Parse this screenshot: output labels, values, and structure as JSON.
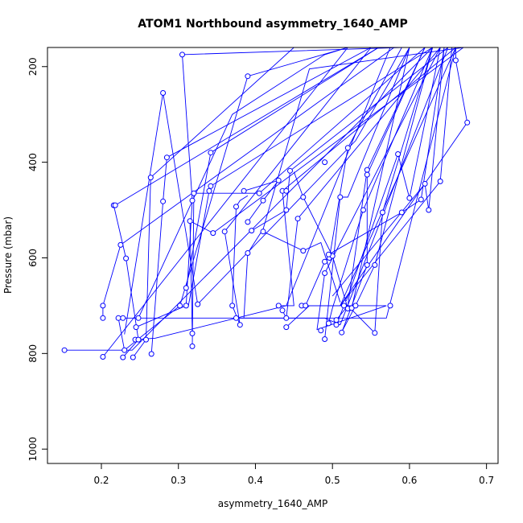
{
  "chart_data": {
    "type": "line",
    "title": "ATOM1 Northbound asymmetry_1640_AMP",
    "xlabel": "asymmetry_1640_AMP",
    "ylabel": "Pressure (mbar)",
    "xlim": [
      0.13,
      0.715
    ],
    "ylim": [
      1030,
      160
    ],
    "y_reversed": true,
    "x_ticks": [
      0.2,
      0.3,
      0.4,
      0.5,
      0.6,
      0.7
    ],
    "x_tick_labels": [
      "0.2",
      "0.3",
      "0.4",
      "0.5",
      "0.6",
      "0.7"
    ],
    "y_ticks": [
      200,
      400,
      600,
      800,
      1000
    ],
    "y_tick_labels": [
      "200",
      "400",
      "600",
      "800",
      "1000"
    ],
    "grid": false,
    "color": "#0000ff",
    "series": [
      {
        "x": [
          0.152,
          0.24,
          0.63
        ],
        "y": [
          793,
          793,
          160
        ]
      },
      {
        "x": [
          0.202,
          0.52,
          0.62
        ],
        "y": [
          807,
          160,
          160
        ]
      },
      {
        "x": [
          0.228,
          0.248,
          0.232,
          0.216,
          0.218,
          0.56
        ],
        "y": [
          808,
          771,
          601,
          490,
          490,
          160
        ]
      },
      {
        "x": [
          0.241,
          0.258,
          0.264,
          0.45,
          0.56
        ],
        "y": [
          808,
          771,
          432,
          160,
          160
        ]
      },
      {
        "x": [
          0.244,
          0.27,
          0.44,
          0.575
        ],
        "y": [
          771,
          768,
          700,
          160
        ]
      },
      {
        "x": [
          0.265,
          0.28,
          0.285,
          0.55,
          0.6
        ],
        "y": [
          801,
          482,
          390,
          160,
          160
        ]
      },
      {
        "x": [
          0.202,
          0.202,
          0.225,
          0.58
        ],
        "y": [
          726,
          700,
          573,
          160
        ]
      },
      {
        "x": [
          0.222,
          0.23,
          0.302,
          0.39,
          0.52
        ],
        "y": [
          726,
          793,
          700,
          220,
          160
        ]
      },
      {
        "x": [
          0.228,
          0.57,
          0.66
        ],
        "y": [
          726,
          726,
          160
        ]
      },
      {
        "x": [
          0.245,
          0.31,
          0.318,
          0.305,
          0.59
        ],
        "y": [
          745,
          700,
          480,
          175,
          160
        ]
      },
      {
        "x": [
          0.248,
          0.37,
          0.49,
          0.52
        ],
        "y": [
          726,
          300,
          175,
          160
        ]
      },
      {
        "x": [
          0.23,
          0.28,
          0.325,
          0.53,
          0.6
        ],
        "y": [
          760,
          255,
          697,
          355,
          160
        ]
      },
      {
        "x": [
          0.318,
          0.32,
          0.405,
          0.62
        ],
        "y": [
          785,
          465,
          465,
          160
        ]
      },
      {
        "x": [
          0.318,
          0.315,
          0.345,
          0.67
        ],
        "y": [
          758,
          523,
          548,
          160
        ]
      },
      {
        "x": [
          0.313,
          0.34,
          0.342,
          0.63
        ],
        "y": [
          700,
          460,
          450,
          160
        ]
      },
      {
        "x": [
          0.31,
          0.342,
          0.56,
          0.64
        ],
        "y": [
          663,
          380,
          160,
          160
        ]
      },
      {
        "x": [
          0.37,
          0.38,
          0.36,
          0.55
        ],
        "y": [
          700,
          740,
          545,
          160
        ]
      },
      {
        "x": [
          0.375,
          0.49,
          0.51,
          0.65
        ],
        "y": [
          726,
          726,
          740,
          160
        ]
      },
      {
        "x": [
          0.385,
          0.39,
          0.41,
          0.47,
          0.67
        ],
        "y": [
          726,
          590,
          540,
          205,
          160
        ]
      },
      {
        "x": [
          0.395,
          0.44,
          0.445,
          0.65
        ],
        "y": [
          543,
          500,
          418,
          160
        ]
      },
      {
        "x": [
          0.43,
          0.45,
          0.435,
          0.66
        ],
        "y": [
          700,
          700,
          460,
          160
        ]
      },
      {
        "x": [
          0.435,
          0.44,
          0.455,
          0.64
        ],
        "y": [
          710,
          726,
          518,
          160
        ]
      },
      {
        "x": [
          0.44,
          0.47,
          0.51,
          0.66
        ],
        "y": [
          745,
          700,
          700,
          160
        ]
      },
      {
        "x": [
          0.46,
          0.57,
          0.48,
          0.49,
          0.64
        ],
        "y": [
          700,
          700,
          750,
          632,
          160
        ]
      },
      {
        "x": [
          0.465,
          0.49,
          0.496,
          0.52,
          0.59
        ],
        "y": [
          700,
          608,
          600,
          370,
          160
        ]
      },
      {
        "x": [
          0.49,
          0.51,
          0.52,
          0.6
        ],
        "y": [
          770,
          473,
          473,
          160
        ]
      },
      {
        "x": [
          0.495,
          0.5,
          0.54,
          0.63
        ],
        "y": [
          737,
          705,
          500,
          160
        ]
      },
      {
        "x": [
          0.505,
          0.52,
          0.545,
          0.62
        ],
        "y": [
          730,
          700,
          416,
          160
        ]
      },
      {
        "x": [
          0.505,
          0.515,
          0.525,
          0.6
        ],
        "y": [
          740,
          700,
          705,
          160
        ]
      },
      {
        "x": [
          0.512,
          0.545,
          0.545,
          0.62
        ],
        "y": [
          756,
          615,
          426,
          160
        ]
      },
      {
        "x": [
          0.512,
          0.53,
          0.555,
          0.63
        ],
        "y": [
          755,
          700,
          615,
          160
        ]
      },
      {
        "x": [
          0.52,
          0.555,
          0.565,
          0.63
        ],
        "y": [
          700,
          757,
          505,
          160
        ]
      },
      {
        "x": [
          0.518,
          0.585,
          0.6,
          0.64
        ],
        "y": [
          690,
          383,
          475,
          160
        ]
      },
      {
        "x": [
          0.495,
          0.59,
          0.615,
          0.645
        ],
        "y": [
          593,
          505,
          478,
          160
        ]
      },
      {
        "x": [
          0.5,
          0.62,
          0.625,
          0.645
        ],
        "y": [
          680,
          445,
          500,
          160
        ]
      },
      {
        "x": [
          0.51,
          0.64,
          0.64,
          0.655
        ],
        "y": [
          700,
          440,
          440,
          160
        ]
      },
      {
        "x": [
          0.51,
          0.675,
          0.66,
          0.66
        ],
        "y": [
          700,
          317,
          187,
          160
        ]
      },
      {
        "x": [
          0.385,
          0.43,
          0.41,
          0.39
        ],
        "y": [
          460,
          438,
          480,
          525
        ]
      },
      {
        "x": [
          0.45,
          0.462,
          0.5,
          0.52
        ],
        "y": [
          420,
          473,
          596,
          706
        ]
      },
      {
        "x": [
          0.41,
          0.462,
          0.485,
          0.51
        ],
        "y": [
          545,
          585,
          568,
          693
        ]
      },
      {
        "x": [
          0.37,
          0.375,
          0.38,
          0.39
        ],
        "y": [
          700,
          493,
          480,
          470
        ]
      }
    ],
    "markers": [
      [
        0.152,
        793
      ],
      [
        0.202,
        807
      ],
      [
        0.228,
        808
      ],
      [
        0.241,
        808
      ],
      [
        0.265,
        801
      ],
      [
        0.258,
        771
      ],
      [
        0.244,
        771
      ],
      [
        0.248,
        771
      ],
      [
        0.202,
        726
      ],
      [
        0.202,
        700
      ],
      [
        0.222,
        726
      ],
      [
        0.228,
        726
      ],
      [
        0.23,
        793
      ],
      [
        0.248,
        726
      ],
      [
        0.245,
        745
      ],
      [
        0.232,
        601
      ],
      [
        0.225,
        573
      ],
      [
        0.216,
        490
      ],
      [
        0.218,
        490
      ],
      [
        0.264,
        432
      ],
      [
        0.28,
        482
      ],
      [
        0.285,
        390
      ],
      [
        0.28,
        255
      ],
      [
        0.305,
        175
      ],
      [
        0.39,
        220
      ],
      [
        0.31,
        700
      ],
      [
        0.318,
        758
      ],
      [
        0.318,
        785
      ],
      [
        0.315,
        523
      ],
      [
        0.318,
        480
      ],
      [
        0.32,
        465
      ],
      [
        0.302,
        700
      ],
      [
        0.31,
        663
      ],
      [
        0.325,
        697
      ],
      [
        0.34,
        460
      ],
      [
        0.342,
        450
      ],
      [
        0.342,
        380
      ],
      [
        0.345,
        548
      ],
      [
        0.36,
        545
      ],
      [
        0.37,
        700
      ],
      [
        0.375,
        493
      ],
      [
        0.38,
        740
      ],
      [
        0.375,
        726
      ],
      [
        0.385,
        460
      ],
      [
        0.39,
        590
      ],
      [
        0.39,
        525
      ],
      [
        0.395,
        543
      ],
      [
        0.405,
        465
      ],
      [
        0.41,
        480
      ],
      [
        0.41,
        545
      ],
      [
        0.43,
        438
      ],
      [
        0.43,
        700
      ],
      [
        0.435,
        710
      ],
      [
        0.44,
        745
      ],
      [
        0.44,
        726
      ],
      [
        0.435,
        460
      ],
      [
        0.44,
        460
      ],
      [
        0.44,
        500
      ],
      [
        0.445,
        418
      ],
      [
        0.455,
        518
      ],
      [
        0.46,
        700
      ],
      [
        0.462,
        473
      ],
      [
        0.462,
        585
      ],
      [
        0.465,
        700
      ],
      [
        0.485,
        752
      ],
      [
        0.49,
        608
      ],
      [
        0.49,
        632
      ],
      [
        0.49,
        770
      ],
      [
        0.495,
        737
      ],
      [
        0.496,
        600
      ],
      [
        0.5,
        596
      ],
      [
        0.495,
        593
      ],
      [
        0.49,
        400
      ],
      [
        0.505,
        730
      ],
      [
        0.505,
        740
      ],
      [
        0.51,
        473
      ],
      [
        0.512,
        756
      ],
      [
        0.515,
        700
      ],
      [
        0.52,
        370
      ],
      [
        0.52,
        706
      ],
      [
        0.525,
        705
      ],
      [
        0.53,
        700
      ],
      [
        0.54,
        500
      ],
      [
        0.545,
        416
      ],
      [
        0.545,
        426
      ],
      [
        0.545,
        615
      ],
      [
        0.555,
        615
      ],
      [
        0.555,
        757
      ],
      [
        0.565,
        505
      ],
      [
        0.575,
        700
      ],
      [
        0.585,
        383
      ],
      [
        0.59,
        505
      ],
      [
        0.6,
        475
      ],
      [
        0.615,
        478
      ],
      [
        0.62,
        445
      ],
      [
        0.625,
        500
      ],
      [
        0.64,
        440
      ],
      [
        0.66,
        187
      ],
      [
        0.675,
        317
      ]
    ]
  }
}
